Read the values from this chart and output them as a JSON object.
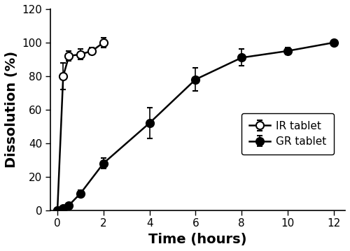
{
  "IR_x": [
    0,
    0.25,
    0.5,
    1.0,
    1.5,
    2.0
  ],
  "IR_y": [
    0,
    80,
    92,
    93,
    95,
    100
  ],
  "IR_yerr": [
    0,
    8,
    3,
    3,
    2,
    3
  ],
  "GR_x": [
    0,
    0.25,
    0.5,
    1.0,
    2.0,
    4.0,
    6.0,
    8.0,
    10.0,
    12.0
  ],
  "GR_y": [
    0,
    1,
    3,
    10,
    28,
    52,
    78,
    91,
    95,
    100
  ],
  "GR_yerr": [
    0,
    0.5,
    1,
    2,
    3,
    9,
    7,
    5,
    2,
    1
  ],
  "xlabel": "Time (hours)",
  "ylabel": "Dissolution (%)",
  "xlim": [
    -0.3,
    12.5
  ],
  "ylim": [
    0,
    120
  ],
  "yticks": [
    0,
    20,
    40,
    60,
    80,
    100,
    120
  ],
  "xticks": [
    0,
    2,
    4,
    6,
    8,
    10,
    12
  ],
  "legend_labels": [
    "IR tablet",
    "GR tablet"
  ],
  "line_color": "black",
  "marker_size": 8,
  "linewidth": 1.8,
  "capsize": 3,
  "elinewidth": 1.2,
  "background_color": "#ffffff"
}
